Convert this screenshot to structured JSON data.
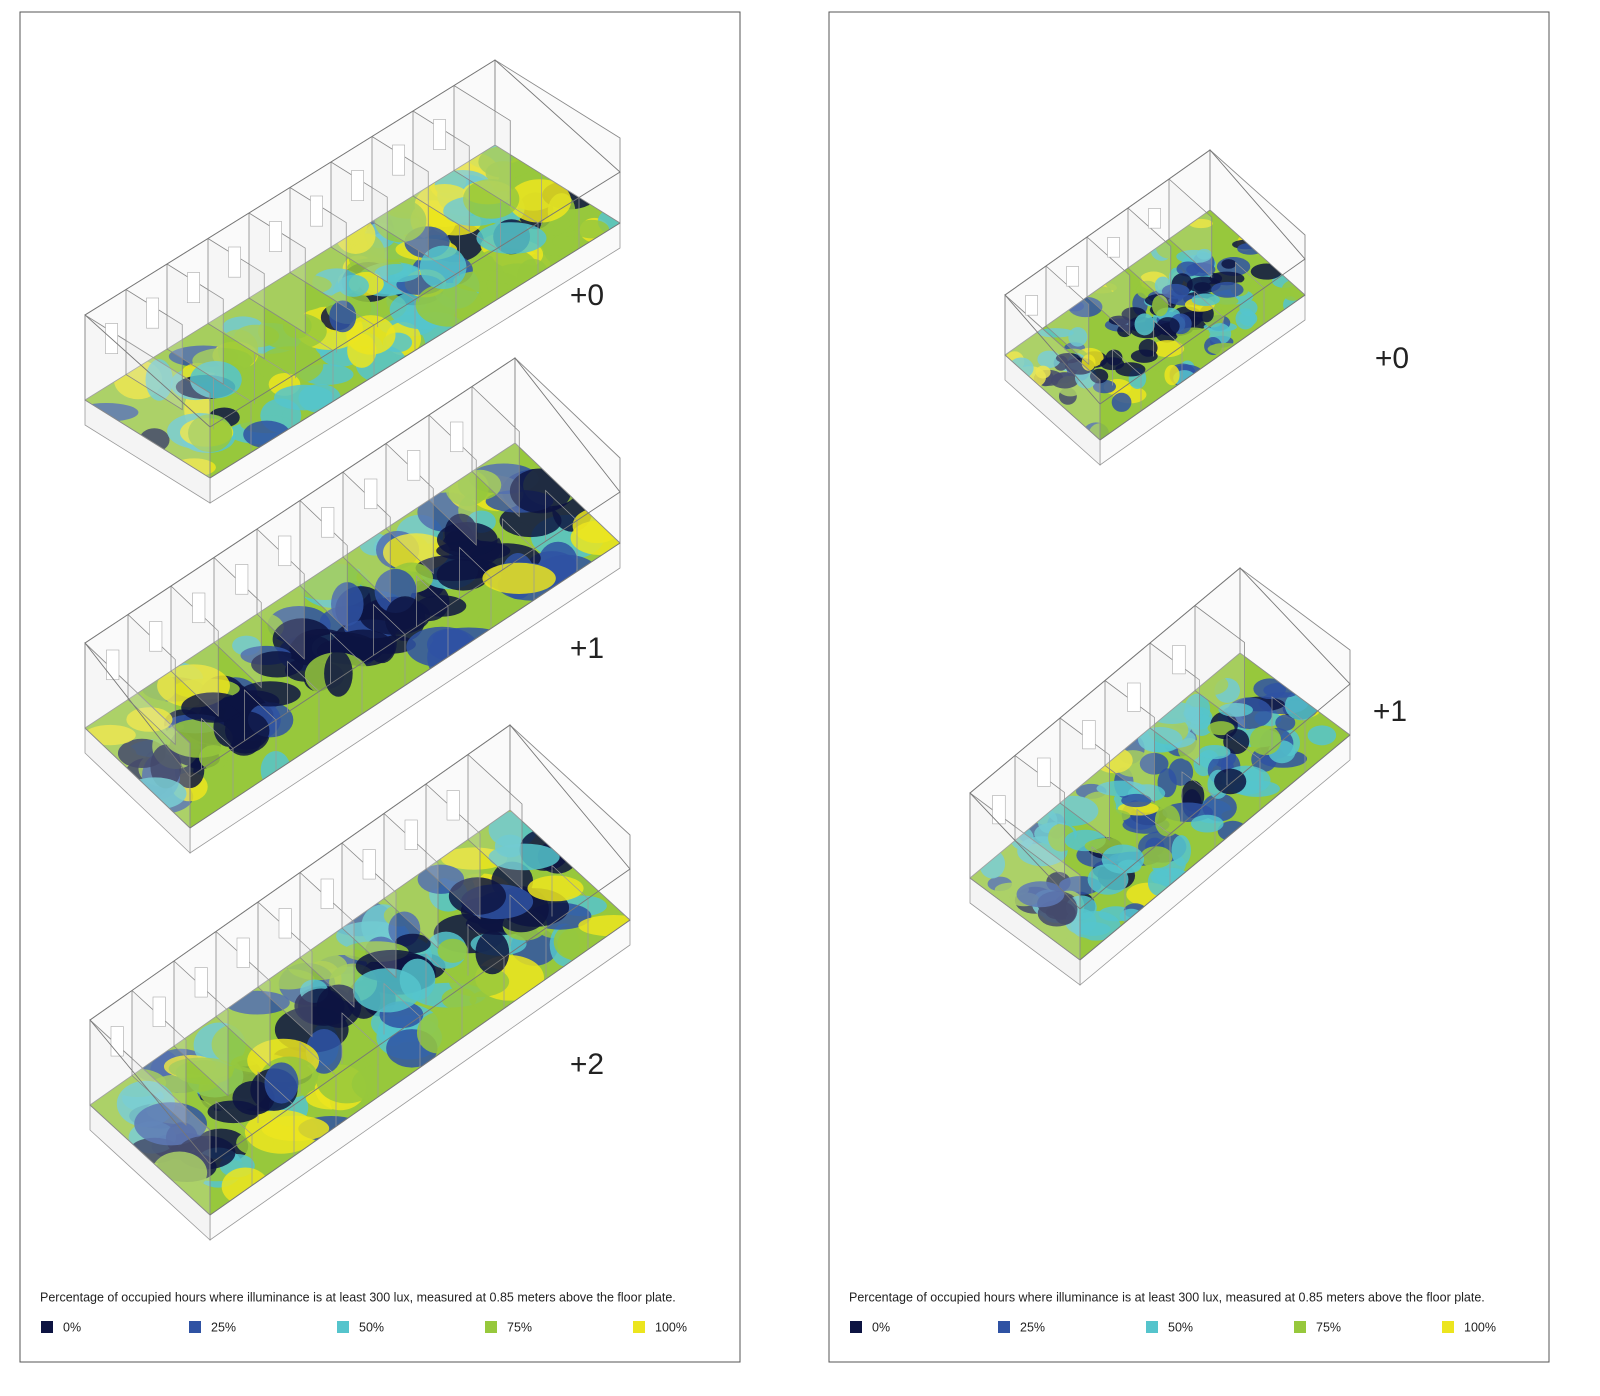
{
  "panels": [
    {
      "floors": [
        "+0",
        "+1",
        "+2"
      ],
      "caption": "Percentage of occupied hours where illuminance is at least 300 lux, measured at 0.85 meters above the floor plate.",
      "legend": [
        {
          "label": "0%",
          "color": "#0d1442"
        },
        {
          "label": "25%",
          "color": "#2f52a3"
        },
        {
          "label": "50%",
          "color": "#55c4cc"
        },
        {
          "label": "75%",
          "color": "#97c83c"
        },
        {
          "label": "100%",
          "color": "#ece51e"
        }
      ]
    },
    {
      "floors": [
        "+0",
        "+1"
      ],
      "caption": "Percentage of occupied hours where illuminance is at least 300 lux, measured at 0.85 meters above the floor plate.",
      "legend": [
        {
          "label": "0%",
          "color": "#0d1442"
        },
        {
          "label": "25%",
          "color": "#2f52a3"
        },
        {
          "label": "50%",
          "color": "#55c4cc"
        },
        {
          "label": "75%",
          "color": "#97c83c"
        },
        {
          "label": "100%",
          "color": "#ece51e"
        }
      ]
    }
  ]
}
